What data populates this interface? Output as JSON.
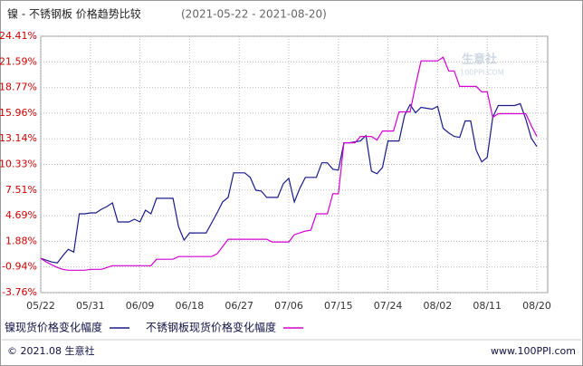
{
  "chart_data": {
    "type": "line",
    "title": "镍 - 不锈钢板 价格趋势比较",
    "subtitle": "(2021-05-22 - 2021-08-20)",
    "watermark": [
      "生意社",
      "100PPI.COM"
    ],
    "categories": [
      "05/22",
      null,
      null,
      null,
      null,
      null,
      null,
      null,
      null,
      "05/31",
      null,
      null,
      null,
      null,
      null,
      null,
      null,
      null,
      "06/09",
      null,
      null,
      null,
      null,
      null,
      null,
      null,
      null,
      "06/18",
      null,
      null,
      null,
      null,
      null,
      null,
      null,
      null,
      "06/27",
      null,
      null,
      null,
      null,
      null,
      null,
      null,
      null,
      "07/06",
      null,
      null,
      null,
      null,
      null,
      null,
      null,
      null,
      "07/15",
      null,
      null,
      null,
      null,
      null,
      null,
      null,
      null,
      "07/24",
      null,
      null,
      null,
      null,
      null,
      null,
      null,
      null,
      "08/02",
      null,
      null,
      null,
      null,
      null,
      null,
      null,
      null,
      "08/11",
      null,
      null,
      null,
      null,
      null,
      null,
      null,
      null,
      "08/20"
    ],
    "series": [
      {
        "name": "镍现货价格变化幅度",
        "color": "#1a1a8c",
        "values": [
          0,
          -0.2,
          -0.4,
          -0.5,
          0.3,
          1.0,
          0.7,
          4.9,
          4.9,
          5.0,
          5.0,
          5.4,
          5.7,
          6.1,
          4.0,
          4.0,
          4.0,
          4.3,
          4.0,
          5.3,
          4.9,
          6.6,
          6.6,
          6.6,
          6.6,
          3.5,
          2.0,
          2.8,
          2.8,
          2.8,
          2.8,
          3.9,
          5.0,
          6.2,
          6.7,
          9.4,
          9.4,
          9.4,
          8.9,
          7.5,
          7.4,
          6.7,
          6.7,
          6.7,
          8.2,
          8.8,
          6.2,
          7.7,
          8.9,
          8.9,
          8.9,
          10.5,
          10.5,
          9.8,
          9.7,
          12.7,
          12.7,
          12.8,
          12.9,
          13.5,
          9.6,
          9.3,
          10.0,
          12.9,
          12.9,
          12.9,
          15.7,
          16.9,
          16.0,
          16.6,
          16.5,
          16.4,
          16.7,
          14.3,
          13.8,
          13.4,
          13.3,
          15.1,
          15.1,
          11.9,
          10.6,
          11.1,
          15.5,
          16.8,
          16.8,
          16.8,
          16.8,
          17.0,
          15.3,
          13.2,
          12.3
        ]
      },
      {
        "name": "不锈钢板现货价格变化幅度",
        "color": "#d400d4",
        "values": [
          0,
          -0.4,
          -0.7,
          -1.0,
          -1.2,
          -1.3,
          -1.3,
          -1.3,
          -1.3,
          -1.2,
          -1.2,
          -1.2,
          -1.0,
          -0.8,
          -0.8,
          -0.8,
          -0.8,
          -0.8,
          -0.8,
          -0.8,
          -0.8,
          -0.1,
          -0.1,
          -0.1,
          -0.1,
          0.2,
          0.2,
          0.2,
          0.2,
          0.2,
          0.2,
          0.2,
          0.5,
          1.3,
          2.1,
          2.1,
          2.1,
          2.1,
          2.1,
          2.1,
          2.1,
          2.1,
          1.8,
          1.8,
          1.8,
          1.8,
          2.6,
          2.8,
          3.0,
          3.1,
          4.9,
          4.9,
          4.9,
          7.1,
          7.1,
          12.7,
          12.7,
          12.7,
          13.4,
          13.4,
          13.4,
          13.0,
          14.0,
          14.0,
          14.0,
          16.1,
          16.1,
          16.1,
          19.0,
          21.7,
          21.7,
          21.7,
          21.7,
          22.1,
          20.6,
          20.6,
          18.9,
          18.9,
          18.9,
          18.9,
          18.3,
          18.3,
          15.5,
          15.9,
          15.9,
          15.9,
          15.9,
          15.9,
          15.9,
          14.6,
          13.4
        ]
      }
    ],
    "ylim": [
      -3.76,
      24.41
    ],
    "yticks": [
      {
        "value": 24.41,
        "label": "24.41%"
      },
      {
        "value": 21.59,
        "label": "21.59%"
      },
      {
        "value": 18.77,
        "label": "18.77%"
      },
      {
        "value": 15.96,
        "label": "15.96%"
      },
      {
        "value": 13.14,
        "label": "13.14%"
      },
      {
        "value": 10.33,
        "label": "10.33%"
      },
      {
        "value": 7.51,
        "label": "7.51%"
      },
      {
        "value": 4.69,
        "label": "4.69%"
      },
      {
        "value": 1.88,
        "label": "1.88%"
      },
      {
        "value": -0.94,
        "label": "-0.94%"
      },
      {
        "value": -3.76,
        "label": "-3.76%"
      }
    ],
    "grid": true,
    "legend": "bottom"
  },
  "footer": {
    "left": "© 2021.08 生意社",
    "right": "www.100PPI.com"
  }
}
